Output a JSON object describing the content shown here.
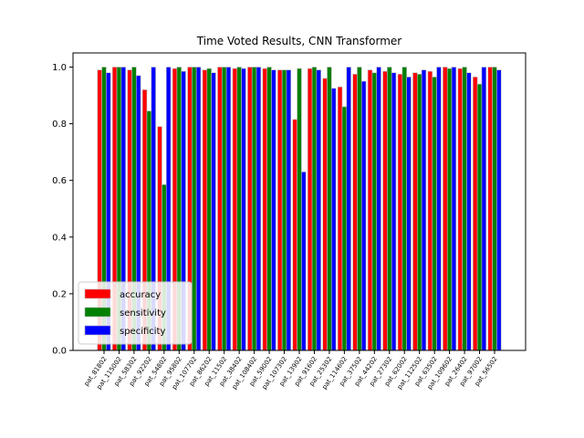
{
  "chart_data": {
    "type": "bar",
    "title": "Time Voted Results, CNN Transformer",
    "xlabel": "",
    "ylabel": "",
    "ylim": [
      0.0,
      1.05
    ],
    "yticks": [
      "0.0",
      "0.2",
      "0.4",
      "0.6",
      "0.8",
      "1.0"
    ],
    "grid": false,
    "legend_position": "lower-left",
    "categories": [
      "pat_81802",
      "pat_115002",
      "pat_58302",
      "pat_92202",
      "pat_54802",
      "pat_95802",
      "pat_107702",
      "pat_86202",
      "pat_11502",
      "pat_38402",
      "pat_108402",
      "pat_59002",
      "pat_107302",
      "pat_13902",
      "pat_91602",
      "pat_25302",
      "pat_114602",
      "pat_37502",
      "pat_44202",
      "pat_27302",
      "pat_62002",
      "pat_112502",
      "pat_63502",
      "pat_109602",
      "pat_26402",
      "pat_97002",
      "pat_56502"
    ],
    "series": [
      {
        "name": "accuracy",
        "color": "#ff0000",
        "values": [
          0.99,
          1.0,
          0.99,
          0.92,
          0.79,
          0.995,
          1.0,
          0.99,
          1.0,
          0.995,
          1.0,
          0.995,
          0.99,
          0.815,
          0.995,
          0.96,
          0.93,
          0.975,
          0.99,
          0.985,
          0.975,
          0.98,
          0.985,
          1.0,
          0.995,
          0.965,
          1.0
        ]
      },
      {
        "name": "sensitivity",
        "color": "#008000",
        "values": [
          1.0,
          1.0,
          1.0,
          0.845,
          0.585,
          1.0,
          1.0,
          0.995,
          1.0,
          1.0,
          1.0,
          1.0,
          0.99,
          0.995,
          1.0,
          1.0,
          0.86,
          1.0,
          0.98,
          1.0,
          1.0,
          0.975,
          0.965,
          0.995,
          1.0,
          0.94,
          1.0
        ]
      },
      {
        "name": "specificity",
        "color": "#0000ff",
        "values": [
          0.98,
          1.0,
          0.97,
          1.0,
          1.0,
          0.985,
          1.0,
          0.98,
          1.0,
          0.995,
          1.0,
          0.99,
          0.99,
          0.63,
          0.99,
          0.925,
          1.0,
          0.95,
          1.0,
          0.98,
          0.965,
          0.99,
          1.0,
          1.0,
          0.98,
          1.0,
          0.99
        ]
      }
    ]
  }
}
